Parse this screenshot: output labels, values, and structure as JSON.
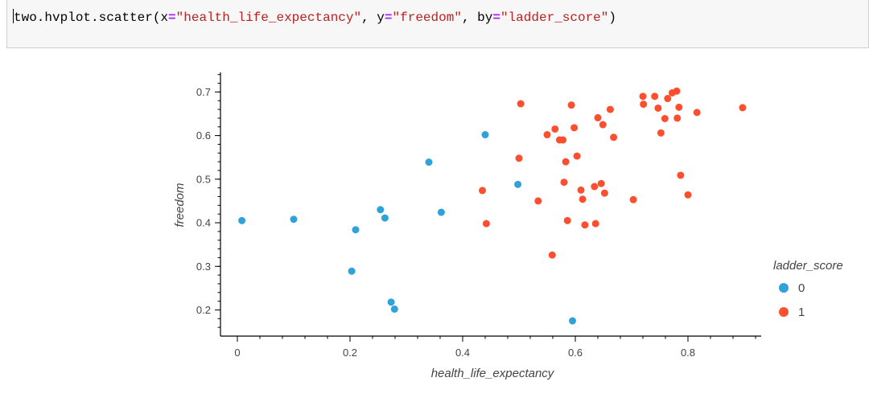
{
  "cell": {
    "code_tokens": [
      {
        "text": "two.hvplot.scatter(",
        "kind": "name"
      },
      {
        "text": "x",
        "kind": "name"
      },
      {
        "text": "=",
        "kind": "op"
      },
      {
        "text": "\"health_life_expectancy\"",
        "kind": "str"
      },
      {
        "text": ", ",
        "kind": "name"
      },
      {
        "text": "y",
        "kind": "name"
      },
      {
        "text": "=",
        "kind": "op"
      },
      {
        "text": "\"freedom\"",
        "kind": "str"
      },
      {
        "text": ", ",
        "kind": "name"
      },
      {
        "text": "by",
        "kind": "name"
      },
      {
        "text": "=",
        "kind": "op"
      },
      {
        "text": "\"ladder_score\"",
        "kind": "str"
      },
      {
        "text": ")",
        "kind": "name"
      }
    ]
  },
  "chart_data": {
    "type": "scatter",
    "title": "",
    "xlabel": "health_life_expectancy",
    "ylabel": "freedom",
    "xlim": [
      -0.03,
      0.93
    ],
    "ylim": [
      0.14,
      0.745
    ],
    "xticks": [
      0,
      0.2,
      0.4,
      0.6,
      0.8
    ],
    "xtick_labels": [
      "0",
      "0.2",
      "0.4",
      "0.6",
      "0.8"
    ],
    "yticks": [
      0.2,
      0.3,
      0.4,
      0.5,
      0.6,
      0.7
    ],
    "ytick_labels": [
      "0.2",
      "0.3",
      "0.4",
      "0.5",
      "0.6",
      "0.7"
    ],
    "grid": false,
    "legend_title": "ladder_score",
    "legend_position": "right",
    "series": [
      {
        "name": "0",
        "color": "#30a2da",
        "points": [
          [
            0.008,
            0.405
          ],
          [
            0.1,
            0.408
          ],
          [
            0.21,
            0.384
          ],
          [
            0.203,
            0.289
          ],
          [
            0.254,
            0.43
          ],
          [
            0.262,
            0.411
          ],
          [
            0.273,
            0.218
          ],
          [
            0.279,
            0.202
          ],
          [
            0.34,
            0.539
          ],
          [
            0.362,
            0.424
          ],
          [
            0.44,
            0.602
          ],
          [
            0.498,
            0.488
          ],
          [
            0.595,
            0.175
          ]
        ]
      },
      {
        "name": "1",
        "color": "#fc4f30",
        "points": [
          [
            0.435,
            0.474
          ],
          [
            0.442,
            0.398
          ],
          [
            0.5,
            0.548
          ],
          [
            0.503,
            0.673
          ],
          [
            0.534,
            0.45
          ],
          [
            0.55,
            0.602
          ],
          [
            0.559,
            0.326
          ],
          [
            0.564,
            0.615
          ],
          [
            0.572,
            0.59
          ],
          [
            0.578,
            0.59
          ],
          [
            0.58,
            0.493
          ],
          [
            0.583,
            0.54
          ],
          [
            0.586,
            0.405
          ],
          [
            0.593,
            0.67
          ],
          [
            0.598,
            0.618
          ],
          [
            0.603,
            0.553
          ],
          [
            0.61,
            0.475
          ],
          [
            0.613,
            0.454
          ],
          [
            0.617,
            0.395
          ],
          [
            0.634,
            0.483
          ],
          [
            0.636,
            0.398
          ],
          [
            0.64,
            0.641
          ],
          [
            0.646,
            0.49
          ],
          [
            0.649,
            0.625
          ],
          [
            0.652,
            0.468
          ],
          [
            0.662,
            0.66
          ],
          [
            0.668,
            0.596
          ],
          [
            0.703,
            0.453
          ],
          [
            0.72,
            0.69
          ],
          [
            0.721,
            0.672
          ],
          [
            0.741,
            0.69
          ],
          [
            0.747,
            0.663
          ],
          [
            0.752,
            0.606
          ],
          [
            0.759,
            0.639
          ],
          [
            0.764,
            0.685
          ],
          [
            0.772,
            0.698
          ],
          [
            0.78,
            0.702
          ],
          [
            0.781,
            0.64
          ],
          [
            0.784,
            0.665
          ],
          [
            0.787,
            0.509
          ],
          [
            0.8,
            0.464
          ],
          [
            0.816,
            0.653
          ],
          [
            0.897,
            0.664
          ]
        ]
      }
    ]
  }
}
